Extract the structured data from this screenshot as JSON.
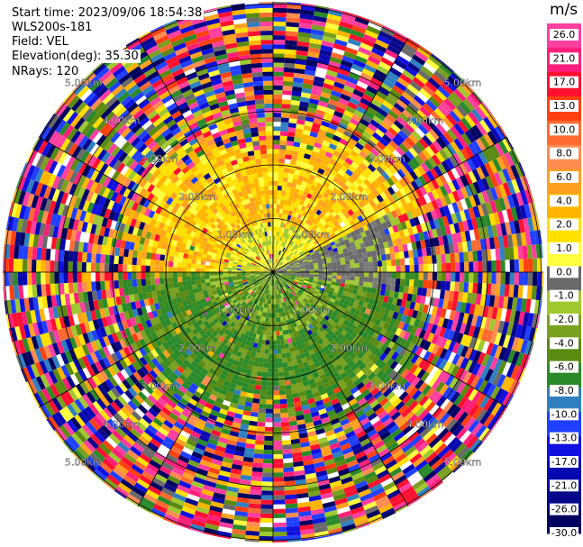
{
  "header": {
    "start_time": "Start time: 2023/09/06 18:54:38",
    "site": "WLS200s-181",
    "field": "Field: VEL",
    "elevation": "Elevation(deg): 35.30",
    "nrays": "NRays: 120"
  },
  "rings": [
    {
      "range_km": 1.0,
      "label": "1.00km"
    },
    {
      "range_km": 2.0,
      "label": "2.00km"
    },
    {
      "range_km": 3.0,
      "label": "3.00km"
    },
    {
      "range_km": 4.0,
      "label": "4.00km"
    },
    {
      "range_km": 5.0,
      "label": "5.00km"
    }
  ],
  "colorbar": {
    "unit": "m/s",
    "ticks": [
      "26.0",
      "21.0",
      "17.0",
      "13.0",
      "10.0",
      "8.0",
      "6.0",
      "4.0",
      "2.0",
      "1.0",
      "0.0",
      "-1.0",
      "-2.0",
      "-4.0",
      "-6.0",
      "-8.0",
      "-10.0",
      "-13.0",
      "-17.0",
      "-21.0",
      "-26.0",
      "-30.0"
    ],
    "colors": [
      "#ff3fa0",
      "#ff1f7a",
      "#ff1030",
      "#ff4010",
      "#ff6a30",
      "#ff8c50",
      "#ffa020",
      "#ffb400",
      "#ffe000",
      "#ffff40",
      "#6a6a6a",
      "#a0c830",
      "#7aa020",
      "#5a8a10",
      "#2a8a2a",
      "#3080c0",
      "#2040ff",
      "#1010e0",
      "#0808b0",
      "#08088a",
      "#000060"
    ],
    "accent_grid": "#000000"
  }
}
